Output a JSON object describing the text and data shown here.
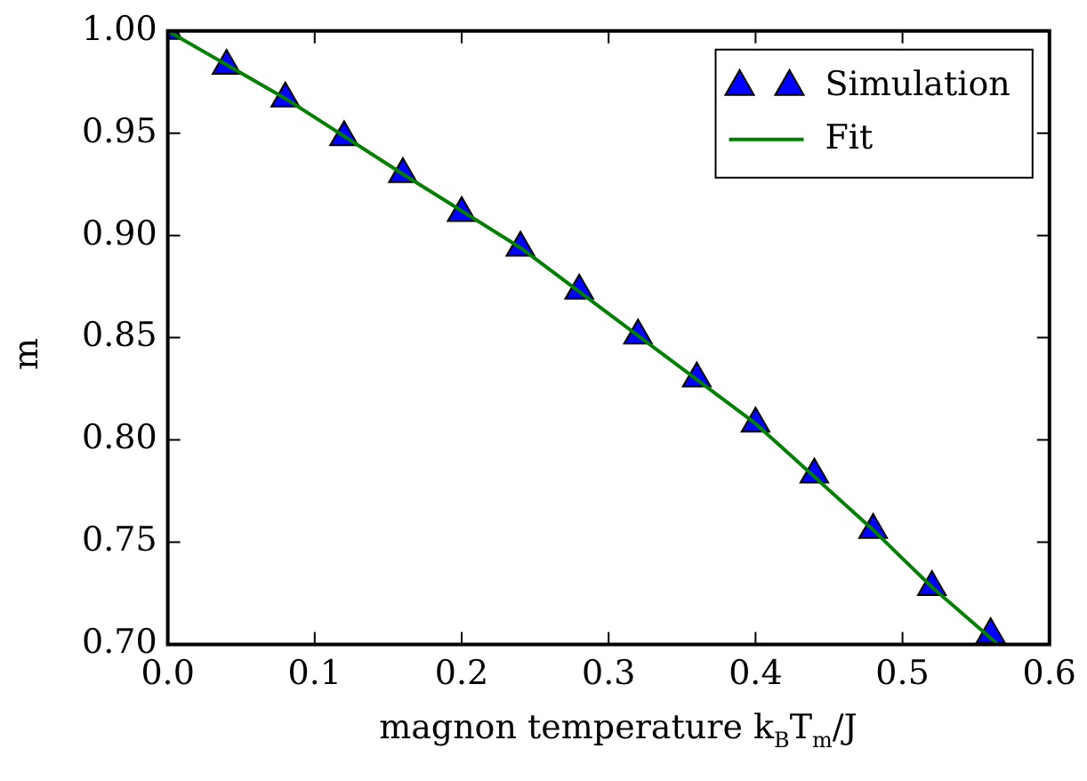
{
  "chart_data": {
    "type": "scatter",
    "xlabel": "magnon temperature k$_{B}$T$_{m}$/J",
    "ylabel": "m",
    "x": [
      0,
      0.04,
      0.08,
      0.12,
      0.16,
      0.2,
      0.24,
      0.28,
      0.32,
      0.36,
      0.4,
      0.44,
      0.48,
      0.52,
      0.56
    ],
    "series": [
      {
        "name": "Simulation",
        "type": "scatter",
        "color": "#0000ff",
        "marker": "triangle",
        "values": [
          1.0,
          0.983,
          0.967,
          0.948,
          0.93,
          0.911,
          0.894,
          0.873,
          0.851,
          0.83,
          0.808,
          0.783,
          0.756,
          0.728,
          0.705
        ]
      },
      {
        "name": "Fit",
        "type": "line",
        "color": "#008000",
        "marker": "none",
        "line_style": "solid",
        "x": [
          0,
          0.08,
          0.16,
          0.24,
          0.32,
          0.4,
          0.48,
          0.52,
          0.565
        ],
        "values": [
          1.0,
          0.967,
          0.93,
          0.894,
          0.851,
          0.808,
          0.756,
          0.728,
          0.7
        ]
      }
    ],
    "xlim": [
      0,
      0.6
    ],
    "ylim": [
      0.7,
      1.0
    ],
    "xticks": [
      {
        "value": 0,
        "label": "0.0"
      },
      0.1,
      0.2,
      0.3,
      0.4,
      0.5,
      0.6
    ],
    "yticks": [
      {
        "value": 0.7,
        "label": "0.70"
      },
      0.75,
      {
        "value": 0.8,
        "label": "0.80"
      },
      0.85,
      {
        "value": 0.9,
        "label": "0.90"
      },
      0.95,
      {
        "value": 1.0,
        "label": "1.00"
      }
    ],
    "grid": false,
    "legend": "top right"
  }
}
